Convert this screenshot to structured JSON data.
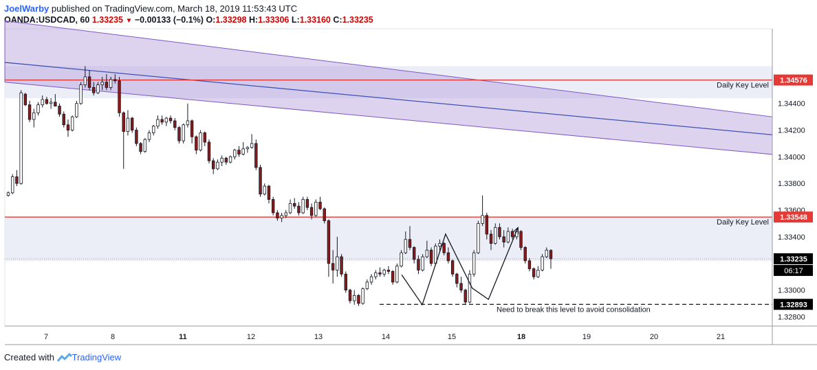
{
  "header": {
    "author": "JoelWarby",
    "published_text": "published on TradingView.com, March 18, 2019 11:53:43 UTC",
    "symbol": "OANDA:USDCAD, 60",
    "last": "1.33235",
    "change": "−0.00133 (−0.1%)",
    "o_label": "O:",
    "o_val": "1.33298",
    "h_label": "H:",
    "h_val": "1.33306",
    "l_label": "L:",
    "l_val": "1.33160",
    "c_label": "C:",
    "c_val": "1.33235"
  },
  "footer": {
    "created_with": "Created with",
    "brand": "TradingView"
  },
  "colors": {
    "up": "#ffffff",
    "down": "#8b1a1a",
    "wick": "#131722",
    "key_level": "#e53935",
    "channel_fill": "#b39ddb",
    "channel_mid": "#3f51b5",
    "zone_fill": "#e8eaf6",
    "axis_text": "#131722",
    "price_tag": "#e53935",
    "last_tag": "#000000"
  },
  "chart_data": {
    "type": "candlestick",
    "symbol": "OANDA:USDCAD",
    "timeframe": "60",
    "x_ticks": [
      "7",
      "8",
      "11",
      "12",
      "13",
      "14",
      "15",
      "18",
      "19",
      "20",
      "21"
    ],
    "y_ticks": [
      "1.34400",
      "1.34200",
      "1.34000",
      "1.33800",
      "1.33600",
      "1.33400",
      "1.33000",
      "1.32800"
    ],
    "ylim": [
      1.3273,
      1.3496
    ],
    "key_levels": [
      {
        "label": "Daily Key Level",
        "price": 1.34576,
        "tag": "1.34576"
      },
      {
        "label": "Daily Key Level",
        "price": 1.33548,
        "tag": "1.33548"
      }
    ],
    "zones": [
      {
        "top": 1.3468,
        "bottom": 1.3444
      },
      {
        "top": 1.33548,
        "bottom": 1.33218
      }
    ],
    "channel": {
      "x_start": 0,
      "x_end": 1,
      "upper": [
        1.3502,
        1.343
      ],
      "mid": [
        1.34708,
        1.34165
      ],
      "lower": [
        1.3456,
        1.34018
      ]
    },
    "support": {
      "price": 1.32893,
      "tag": "1.32893",
      "note": "Need to break this level to avoid consolidation"
    },
    "last_price": {
      "price": 1.33235,
      "tag": "1.33235",
      "countdown": "06:17"
    },
    "pattern_path": [
      [
        0.725,
        1.33115
      ],
      [
        0.763,
        1.3289
      ],
      [
        0.806,
        1.3342
      ],
      [
        0.855,
        1.33015
      ],
      [
        0.885,
        1.3293
      ],
      [
        0.939,
        1.33465
      ]
    ],
    "candles": [
      [
        1.3371,
        1.3374,
        1.337,
        1.3373
      ],
      [
        1.3373,
        1.3387,
        1.3372,
        1.3385
      ],
      [
        1.3385,
        1.339,
        1.3378,
        1.338
      ],
      [
        1.338,
        1.345,
        1.3379,
        1.3448
      ],
      [
        1.3447,
        1.3448,
        1.3438,
        1.3439
      ],
      [
        1.3439,
        1.3442,
        1.3426,
        1.3428
      ],
      [
        1.3428,
        1.3436,
        1.3422,
        1.3433
      ],
      [
        1.3433,
        1.3441,
        1.3431,
        1.3439
      ],
      [
        1.3439,
        1.3446,
        1.3437,
        1.3443
      ],
      [
        1.3443,
        1.3445,
        1.3439,
        1.344
      ],
      [
        1.344,
        1.3444,
        1.3436,
        1.3441
      ],
      [
        1.3441,
        1.3447,
        1.3438,
        1.3438
      ],
      [
        1.3438,
        1.344,
        1.343,
        1.3432
      ],
      [
        1.3432,
        1.3434,
        1.3422,
        1.3424
      ],
      [
        1.3424,
        1.3428,
        1.3415,
        1.342
      ],
      [
        1.342,
        1.3431,
        1.3419,
        1.343
      ],
      [
        1.343,
        1.3442,
        1.3429,
        1.344
      ],
      [
        1.344,
        1.3456,
        1.3439,
        1.3454
      ],
      [
        1.3454,
        1.3468,
        1.3452,
        1.346
      ],
      [
        1.346,
        1.3465,
        1.345,
        1.3452
      ],
      [
        1.3452,
        1.3456,
        1.3446,
        1.3448
      ],
      [
        1.3448,
        1.3456,
        1.3447,
        1.3454
      ],
      [
        1.3454,
        1.346,
        1.345,
        1.3456
      ],
      [
        1.3456,
        1.3462,
        1.345,
        1.3452
      ],
      [
        1.3452,
        1.346,
        1.345,
        1.3458
      ],
      [
        1.3458,
        1.3462,
        1.3455,
        1.3457
      ],
      [
        1.3457,
        1.346,
        1.343,
        1.3433
      ],
      [
        1.3433,
        1.3434,
        1.3391,
        1.3419
      ],
      [
        1.3419,
        1.3435,
        1.3416,
        1.3429
      ],
      [
        1.3429,
        1.343,
        1.3418,
        1.342
      ],
      [
        1.342,
        1.3422,
        1.3408,
        1.341
      ],
      [
        1.341,
        1.3411,
        1.3402,
        1.3404
      ],
      [
        1.3404,
        1.3414,
        1.3403,
        1.3413
      ],
      [
        1.3413,
        1.342,
        1.3411,
        1.3418
      ],
      [
        1.3418,
        1.3424,
        1.3416,
        1.3423
      ],
      [
        1.3423,
        1.3431,
        1.3421,
        1.3428
      ],
      [
        1.3428,
        1.3431,
        1.3424,
        1.3426
      ],
      [
        1.3426,
        1.343,
        1.3423,
        1.3429
      ],
      [
        1.3429,
        1.3431,
        1.3425,
        1.3427
      ],
      [
        1.3427,
        1.3429,
        1.342,
        1.3422
      ],
      [
        1.3422,
        1.3423,
        1.341,
        1.3412
      ],
      [
        1.3412,
        1.3425,
        1.341,
        1.3424
      ],
      [
        1.3424,
        1.344,
        1.3422,
        1.3427
      ],
      [
        1.3427,
        1.3428,
        1.341,
        1.3415
      ],
      [
        1.3415,
        1.3416,
        1.3402,
        1.3405
      ],
      [
        1.3405,
        1.342,
        1.3404,
        1.3418
      ],
      [
        1.3418,
        1.3419,
        1.3408,
        1.3411
      ],
      [
        1.3411,
        1.3413,
        1.3395,
        1.3397
      ],
      [
        1.3397,
        1.3399,
        1.3387,
        1.3391
      ],
      [
        1.3391,
        1.3398,
        1.339,
        1.3396
      ],
      [
        1.3396,
        1.3401,
        1.3393,
        1.3399
      ],
      [
        1.3399,
        1.34,
        1.3394,
        1.3396
      ],
      [
        1.3396,
        1.3401,
        1.3395,
        1.34
      ],
      [
        1.34,
        1.3406,
        1.3398,
        1.3405
      ],
      [
        1.3405,
        1.3408,
        1.34,
        1.3402
      ],
      [
        1.3402,
        1.3411,
        1.3401,
        1.3406
      ],
      [
        1.3406,
        1.3408,
        1.3403,
        1.3407
      ],
      [
        1.3407,
        1.3417,
        1.3406,
        1.341
      ],
      [
        1.341,
        1.3413,
        1.339,
        1.3392
      ],
      [
        1.3392,
        1.3394,
        1.337,
        1.3372
      ],
      [
        1.3372,
        1.338,
        1.3371,
        1.3378
      ],
      [
        1.3378,
        1.3379,
        1.3365,
        1.3368
      ],
      [
        1.3368,
        1.337,
        1.3356,
        1.3358
      ],
      [
        1.3358,
        1.336,
        1.3352,
        1.3354
      ],
      [
        1.3354,
        1.3358,
        1.3351,
        1.3356
      ],
      [
        1.3356,
        1.336,
        1.3354,
        1.3358
      ],
      [
        1.3358,
        1.3368,
        1.3357,
        1.3365
      ],
      [
        1.3365,
        1.3369,
        1.3361,
        1.3363
      ],
      [
        1.3363,
        1.3366,
        1.3356,
        1.3358
      ],
      [
        1.3358,
        1.337,
        1.3357,
        1.3368
      ],
      [
        1.3368,
        1.337,
        1.336,
        1.3362
      ],
      [
        1.3362,
        1.3365,
        1.3353,
        1.3356
      ],
      [
        1.3356,
        1.3368,
        1.3355,
        1.3366
      ],
      [
        1.3366,
        1.337,
        1.336,
        1.3361
      ],
      [
        1.3361,
        1.3362,
        1.335,
        1.3352
      ],
      [
        1.3352,
        1.3353,
        1.331,
        1.332
      ],
      [
        1.332,
        1.333,
        1.3305,
        1.3315
      ],
      [
        1.3315,
        1.334,
        1.331,
        1.3325
      ],
      [
        1.3325,
        1.3327,
        1.331,
        1.3312
      ],
      [
        1.3312,
        1.3314,
        1.3298,
        1.33
      ],
      [
        1.33,
        1.3301,
        1.329,
        1.3292
      ],
      [
        1.3292,
        1.33,
        1.3289,
        1.3296
      ],
      [
        1.3296,
        1.3297,
        1.3288,
        1.329
      ],
      [
        1.329,
        1.3302,
        1.3289,
        1.3301
      ],
      [
        1.3301,
        1.3308,
        1.33,
        1.3306
      ],
      [
        1.3306,
        1.3312,
        1.3304,
        1.331
      ],
      [
        1.331,
        1.3315,
        1.3308,
        1.3313
      ],
      [
        1.3313,
        1.3317,
        1.331,
        1.3312
      ],
      [
        1.3312,
        1.3316,
        1.331,
        1.3315
      ],
      [
        1.3315,
        1.3318,
        1.3312,
        1.3314
      ],
      [
        1.3314,
        1.3315,
        1.3304,
        1.3306
      ],
      [
        1.3306,
        1.332,
        1.3305,
        1.3318
      ],
      [
        1.3318,
        1.333,
        1.3317,
        1.3328
      ],
      [
        1.3328,
        1.3344,
        1.3327,
        1.3338
      ],
      [
        1.3338,
        1.3348,
        1.333,
        1.3332
      ],
      [
        1.3332,
        1.3333,
        1.332,
        1.3323
      ],
      [
        1.3323,
        1.3326,
        1.3312,
        1.3315
      ],
      [
        1.3315,
        1.3327,
        1.3314,
        1.3325
      ],
      [
        1.3325,
        1.3337,
        1.3324,
        1.333
      ],
      [
        1.333,
        1.3332,
        1.3318,
        1.332
      ],
      [
        1.332,
        1.3335,
        1.3319,
        1.3333
      ],
      [
        1.3333,
        1.3338,
        1.3329,
        1.3335
      ],
      [
        1.3335,
        1.3336,
        1.3326,
        1.3328
      ],
      [
        1.3328,
        1.3332,
        1.332,
        1.3322
      ],
      [
        1.3322,
        1.3323,
        1.331,
        1.3312
      ],
      [
        1.3312,
        1.3313,
        1.3302,
        1.3305
      ],
      [
        1.3305,
        1.331,
        1.3298,
        1.33
      ],
      [
        1.33,
        1.3301,
        1.3289,
        1.3291
      ],
      [
        1.3291,
        1.3315,
        1.329,
        1.3312
      ],
      [
        1.3312,
        1.333,
        1.331,
        1.3328
      ],
      [
        1.3328,
        1.3352,
        1.3327,
        1.335
      ],
      [
        1.335,
        1.3371,
        1.3348,
        1.3356
      ],
      [
        1.3356,
        1.3358,
        1.3338,
        1.3342
      ],
      [
        1.3342,
        1.3345,
        1.333,
        1.3335
      ],
      [
        1.3335,
        1.335,
        1.3334,
        1.3347
      ],
      [
        1.3347,
        1.335,
        1.3338,
        1.334
      ],
      [
        1.334,
        1.3345,
        1.3332,
        1.3336
      ],
      [
        1.3336,
        1.3347,
        1.3335,
        1.3344
      ],
      [
        1.3344,
        1.3346,
        1.3338,
        1.334
      ],
      [
        1.334,
        1.3346,
        1.3338,
        1.3344
      ],
      [
        1.3344,
        1.3345,
        1.333,
        1.3332
      ],
      [
        1.3332,
        1.3333,
        1.332,
        1.3322
      ],
      [
        1.3322,
        1.3324,
        1.3314,
        1.3316
      ],
      [
        1.3316,
        1.3317,
        1.3308,
        1.331
      ],
      [
        1.331,
        1.3318,
        1.3309,
        1.3315
      ],
      [
        1.3315,
        1.3327,
        1.3314,
        1.3325
      ],
      [
        1.3325,
        1.3332,
        1.3324,
        1.333
      ],
      [
        1.33298,
        1.33306,
        1.3316,
        1.33235
      ]
    ]
  }
}
